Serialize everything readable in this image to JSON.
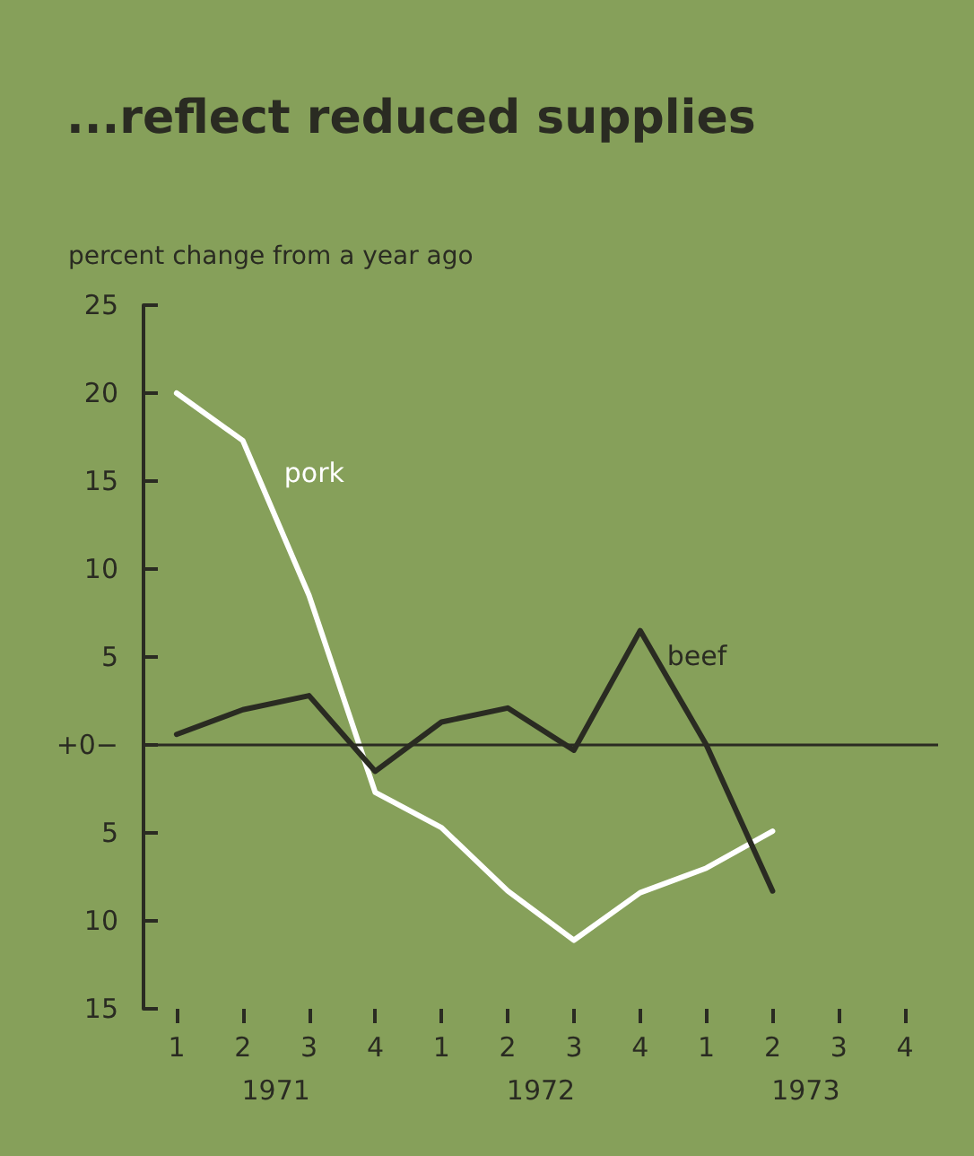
{
  "chart_data": {
    "type": "line",
    "title": "...reflect reduced supplies",
    "ylabel": "percent change from a year ago",
    "categories": [
      "1",
      "2",
      "3",
      "4",
      "1",
      "2",
      "3",
      "4",
      "1",
      "2",
      "3",
      "4"
    ],
    "series": [
      {
        "name": "pork",
        "color": "#ffffff",
        "values": [
          20,
          17.3,
          8.5,
          -2.7,
          -4.7,
          -8.3,
          -11.1,
          -8.4,
          -7,
          -4.9,
          null,
          null
        ]
      },
      {
        "name": "beef",
        "color": "#2a2b22",
        "values": [
          0.6,
          2,
          2.8,
          -1.5,
          1.3,
          2.1,
          -0.3,
          6.5,
          0,
          -8.3,
          null,
          null
        ]
      }
    ],
    "ylim": [
      -15,
      25
    ],
    "yticks": [
      {
        "value": -15,
        "label": "15"
      },
      {
        "value": -10,
        "label": "10"
      },
      {
        "value": -5,
        "label": "5"
      },
      {
        "value": 0,
        "label": "+0−"
      },
      5,
      10,
      15,
      20,
      25
    ],
    "ref_lines": [
      {
        "axis": "y",
        "value": 0,
        "color": "#2a2b22"
      }
    ],
    "annotations": [
      "1971",
      "1972",
      "1973"
    ],
    "legend": false,
    "grid": false,
    "marker": "none",
    "line_style": "solid"
  }
}
